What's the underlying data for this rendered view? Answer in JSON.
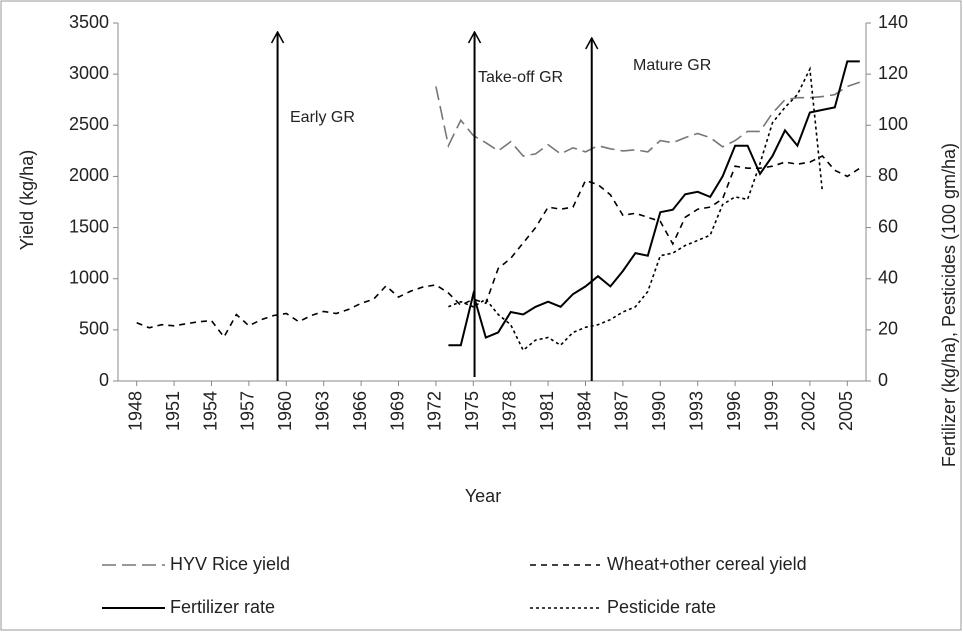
{
  "chart_data": {
    "type": "line",
    "xlabel": "Year",
    "ylabel": "Yield (kg/ha)",
    "y2label": "Fertilizer (kg/ha), Pesticides (100 gm/ha)",
    "xlim": [
      1946.5,
      2006.5
    ],
    "xticks": [
      1948,
      1951,
      1954,
      1957,
      1960,
      1963,
      1966,
      1969,
      1972,
      1975,
      1978,
      1981,
      1984,
      1987,
      1990,
      1993,
      1996,
      1999,
      2002,
      2005
    ],
    "ylim": [
      0,
      3500
    ],
    "yticks": [
      0,
      500,
      1000,
      1500,
      2000,
      2500,
      3000,
      3500
    ],
    "y2lim": [
      0,
      140
    ],
    "y2ticks": [
      0,
      20,
      40,
      60,
      80,
      100,
      120,
      140
    ],
    "grid": false,
    "legend": "bottom",
    "annotations": [
      {
        "text": "Early GR",
        "x": 1959.3
      },
      {
        "text": "Take-off GR",
        "x": 1975.1
      },
      {
        "text": "Mature GR",
        "x": 1984.5
      }
    ],
    "series": [
      {
        "name": "HYV Rice yield",
        "color": "#777777",
        "dash": "14,6",
        "x": [
          1972,
          1973,
          1974,
          1975,
          1976,
          1977,
          1978,
          1979,
          1980,
          1981,
          1982,
          1983,
          1984,
          1985,
          1986,
          1987,
          1988,
          1989,
          1990,
          1991,
          1992,
          1993,
          1994,
          1995,
          1996,
          1997,
          1998,
          1999,
          2000,
          2001,
          2002,
          2003,
          2004,
          2005,
          2006
        ],
        "values": [
          2880,
          2300,
          2550,
          2400,
          2330,
          2250,
          2340,
          2200,
          2220,
          2310,
          2220,
          2280,
          2240,
          2300,
          2270,
          2250,
          2260,
          2240,
          2350,
          2330,
          2380,
          2420,
          2380,
          2290,
          2350,
          2440,
          2440,
          2620,
          2750,
          2770,
          2770,
          2780,
          2800,
          2880,
          2920
        ]
      },
      {
        "name": "Wheat+other cereal yield",
        "color": "#000000",
        "dash": "6,5",
        "x": [
          1948,
          1949,
          1950,
          1951,
          1952,
          1953,
          1954,
          1955,
          1956,
          1957,
          1958,
          1959,
          1960,
          1961,
          1962,
          1963,
          1964,
          1965,
          1966,
          1967,
          1968,
          1969,
          1970,
          1971,
          1972,
          1973,
          1974,
          1975,
          1976,
          1977,
          1978,
          1979,
          1980,
          1981,
          1982,
          1983,
          1984,
          1985,
          1986,
          1987,
          1988,
          1989,
          1990,
          1991,
          1992,
          1993,
          1994,
          1995,
          1996,
          1997,
          1998,
          1999,
          2000,
          2001,
          2002,
          2003,
          2004,
          2005,
          2006
        ],
        "values": [
          570,
          520,
          550,
          540,
          560,
          580,
          590,
          430,
          650,
          540,
          600,
          640,
          660,
          580,
          640,
          680,
          660,
          700,
          760,
          800,
          930,
          820,
          880,
          920,
          940,
          860,
          740,
          800,
          760,
          1100,
          1200,
          1350,
          1500,
          1700,
          1680,
          1700,
          1960,
          1920,
          1820,
          1620,
          1640,
          1600,
          1560,
          1340,
          1600,
          1680,
          1700,
          1780,
          2100,
          2080,
          2080,
          2100,
          2140,
          2120,
          2140,
          2200,
          2060,
          2000,
          2080
        ]
      },
      {
        "name": "Fertilizer rate",
        "color": "#000000",
        "dash": "",
        "axis": "y2",
        "x": [
          1973,
          1974,
          1975,
          1976,
          1977,
          1978,
          1979,
          1980,
          1981,
          1982,
          1983,
          1984,
          1985,
          1986,
          1987,
          1988,
          1989,
          1990,
          1991,
          1992,
          1993,
          1994,
          1995,
          1996,
          1997,
          1998,
          1999,
          2000,
          2001,
          2002,
          2003,
          2004,
          2005,
          2006
        ],
        "values": [
          14,
          14,
          34,
          17,
          19,
          27,
          26,
          29,
          31,
          29,
          34,
          37,
          41,
          37,
          43,
          50,
          49,
          66,
          67,
          73,
          74,
          72,
          80,
          92,
          92,
          81,
          88,
          98,
          92,
          105,
          106,
          107,
          125,
          125
        ]
      },
      {
        "name": "Pesticide rate",
        "color": "#000000",
        "dash": "3,3",
        "axis": "y2",
        "x": [
          1973,
          1974,
          1975,
          1976,
          1977,
          1978,
          1979,
          1980,
          1981,
          1982,
          1983,
          1984,
          1985,
          1986,
          1987,
          1988,
          1989,
          1990,
          1991,
          1992,
          1993,
          1994,
          1995,
          1996,
          1997,
          1998,
          1999,
          2000,
          2001,
          2002,
          2003
        ],
        "values": [
          29,
          31,
          29,
          32,
          26,
          22,
          12,
          16,
          17,
          14,
          19,
          21,
          22,
          24,
          27,
          29,
          35,
          49,
          50,
          53,
          55,
          57,
          69,
          72,
          71,
          85,
          101,
          107,
          112,
          122,
          74
        ]
      }
    ]
  }
}
